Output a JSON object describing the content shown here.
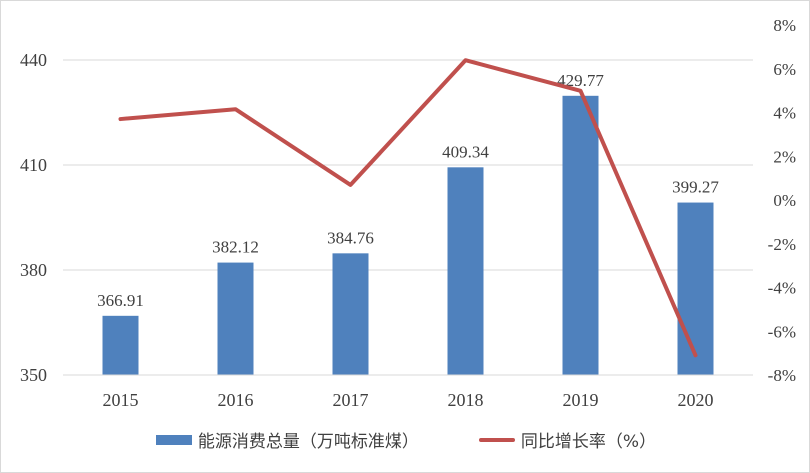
{
  "chart_data": {
    "type": "bar+line",
    "categories": [
      "2015",
      "2016",
      "2017",
      "2018",
      "2019",
      "2020"
    ],
    "series": [
      {
        "name": "能源消费总量（万吨标准煤）",
        "type": "bar",
        "axis": "left",
        "values": [
          366.91,
          382.12,
          384.76,
          409.34,
          429.77,
          399.27
        ],
        "data_labels": [
          "366.91",
          "382.12",
          "384.76",
          "409.34",
          "429.77",
          "399.27"
        ],
        "color": "#4F81BD"
      },
      {
        "name": "同比增长率（%）",
        "type": "line",
        "axis": "right",
        "values": [
          3.7,
          4.15,
          0.69,
          6.39,
          4.99,
          -7.1
        ],
        "color": "#C0504D"
      }
    ],
    "left_axis": {
      "ylim": [
        350,
        450
      ],
      "ticks": [
        "350",
        "380",
        "410",
        "440"
      ]
    },
    "right_axis": {
      "ylim": [
        -8,
        8
      ],
      "ticks": [
        "-8%",
        "-6%",
        "-4%",
        "-2%",
        "0%",
        "2%",
        "4%",
        "6%",
        "8%"
      ]
    },
    "grid": true,
    "legend": "bottom"
  }
}
